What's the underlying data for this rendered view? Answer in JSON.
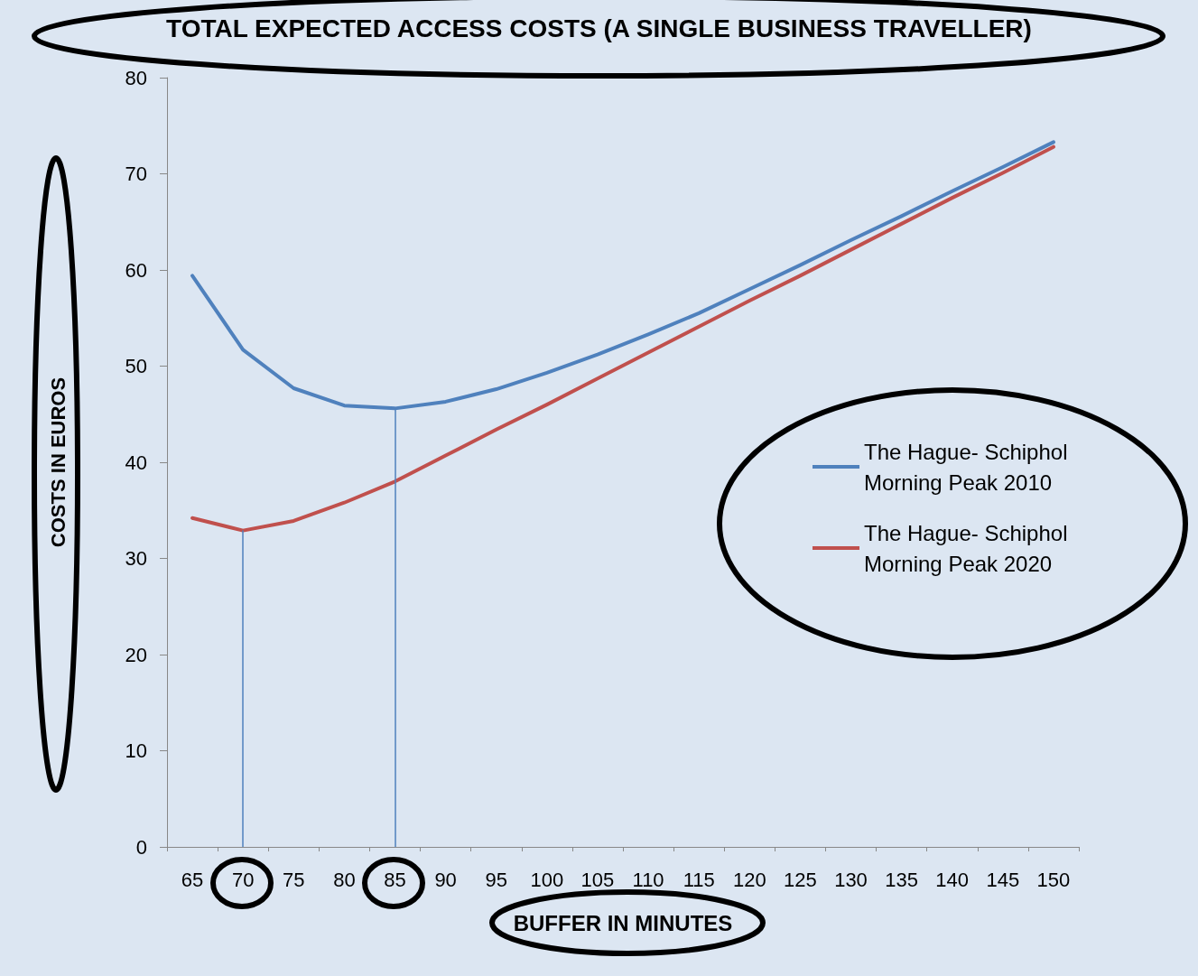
{
  "chart_data": {
    "type": "line",
    "title": "TOTAL EXPECTED ACCESS COSTS (A SINGLE BUSINESS TRAVELLER)",
    "xlabel": "BUFFER IN MINUTES",
    "ylabel": "COSTS IN EUROS",
    "categories": [
      "65",
      "70",
      "75",
      "80",
      "85",
      "90",
      "95",
      "100",
      "105",
      "110",
      "115",
      "120",
      "125",
      "130",
      "135",
      "140",
      "145",
      "150"
    ],
    "series": [
      {
        "name": "The Hague- Schiphol Morning Peak 2010",
        "color": "#4f81bd",
        "values": [
          59.4,
          51.7,
          47.7,
          45.9,
          45.6,
          46.3,
          47.6,
          49.3,
          51.2,
          53.3,
          55.5,
          58.0,
          60.5,
          63.1,
          65.6,
          68.2,
          70.7,
          73.3
        ]
      },
      {
        "name": "The Hague- Schiphol Morning Peak 2020",
        "color": "#c0504d",
        "values": [
          34.2,
          32.9,
          33.9,
          35.8,
          38.0,
          40.7,
          43.4,
          46.0,
          48.7,
          51.4,
          54.1,
          56.8,
          59.4,
          62.1,
          64.8,
          67.5,
          70.1,
          72.8
        ]
      }
    ],
    "ylim": [
      0,
      80
    ],
    "yticks": [
      0,
      10,
      20,
      30,
      40,
      50,
      60,
      70,
      80
    ],
    "ref_lines": [
      {
        "axis": "x",
        "value": "70",
        "color": "#4f81bd"
      },
      {
        "axis": "x",
        "value": "85",
        "color": "#4f81bd"
      }
    ],
    "grid": false,
    "legend": "right",
    "marker": "none",
    "line_style": "solid"
  }
}
